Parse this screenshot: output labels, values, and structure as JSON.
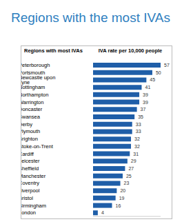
{
  "chart_data": {
    "type": "bar",
    "title": "Regions with the most IVAs",
    "ylabel": "Regions with most IVAs",
    "xlabel": "IVA rate per 10,000 people",
    "orientation": "horizontal",
    "categories": [
      "Peterborough",
      "Portsmouth",
      "Newcastle upon Tyne",
      "Nottingham",
      "Northampton",
      "Warrington",
      "Doncaster",
      "Swansea",
      "Derby",
      "Plymouth",
      "Brighton",
      "Stoke-on-Trent",
      "Cardiff",
      "Leicester",
      "Sheffield",
      "Manchester",
      "Coventry",
      "Liverpool",
      "Bristol",
      "Birmingham",
      "London"
    ],
    "values": [
      57,
      50,
      45,
      41,
      39,
      39,
      37,
      35,
      33,
      33,
      32,
      32,
      31,
      29,
      27,
      25,
      23,
      20,
      19,
      16,
      4
    ],
    "color": "#1f5ea8",
    "xlim": [
      0,
      57
    ],
    "data_labels": true,
    "tick_labels": "y",
    "grid": false
  }
}
